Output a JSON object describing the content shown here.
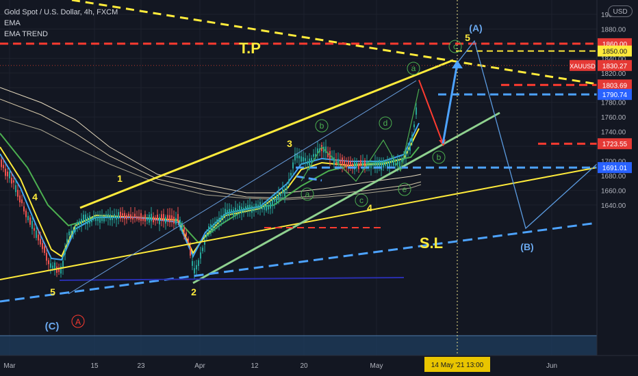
{
  "header": {
    "title": "Gold Spot / U.S. Dollar, 4h, FXCM",
    "indicator1": "EMA",
    "indicator2": "EMA TREND",
    "currency_button": "USD"
  },
  "colors": {
    "background": "#131722",
    "grid": "#1e222d",
    "axis_text": "#b2b5be",
    "candle_up": "#26a69a",
    "candle_down": "#ef5350",
    "yellow": "#ffeb3b",
    "red": "#ff3b30",
    "blue": "#4da3ff",
    "green": "#8fd18f",
    "navy": "#2a2fb0"
  },
  "chart_data": {
    "type": "candlestick",
    "title": "Gold Spot / U.S. Dollar, 4h, FXCM",
    "ylim": [
      1627,
      1902
    ],
    "y_ticks": [
      1640,
      1660,
      1680,
      1700,
      1720,
      1740,
      1760,
      1780,
      1800,
      1820,
      1840,
      1860,
      1880,
      1900
    ],
    "y_tick_labels": [
      "1640.00",
      "1660.00",
      "1680.00",
      "1700.00",
      "1720.00",
      "1740.00",
      "1760.00",
      "1780.00",
      "1800.00",
      "1820.00",
      "1840.00",
      "1860.00",
      "1880.00",
      "1900.00"
    ],
    "x_ticks": [
      "Mar",
      "15",
      "23",
      "Apr",
      "12",
      "20",
      "May",
      "Jun"
    ],
    "crosshair_date_label": "14 May '21   13:00",
    "price_label": "XAUUSD",
    "current_price": 1830.27,
    "current_price_label": "1830.27",
    "levels": [
      {
        "value": 1860.0,
        "label": "1860.00",
        "color": "#ff3b30",
        "style": "dashed"
      },
      {
        "value": 1850.0,
        "label": "1850.00",
        "color": "#ffeb3b",
        "style": "dashed"
      },
      {
        "value": 1803.69,
        "label": "1803.69",
        "color": "#ff3b30",
        "style": "dashed"
      },
      {
        "value": 1790.74,
        "label": "1790.74",
        "color": "#4da3ff",
        "style": "dashed"
      },
      {
        "value": 1723.55,
        "label": "1723.55",
        "color": "#ff3b30",
        "style": "dashed"
      },
      {
        "value": 1691.01,
        "label": "1691.01",
        "color": "#4da3ff",
        "style": "dashed"
      }
    ],
    "annotations": {
      "tp": "T.P",
      "sl": "S.L",
      "wave_A_big": "(A)",
      "wave_B_big": "(B)",
      "wave_C_big": "(C)",
      "wave_A_circle_red": "A",
      "impulse": [
        "1",
        "2",
        "3",
        "4",
        "5"
      ],
      "impulse_start": "5",
      "top_5": "5",
      "sub_top": [
        "a",
        "b",
        "c"
      ],
      "sub_mid": [
        "a",
        "b",
        "c",
        "d",
        "e"
      ],
      "b_proj": "b"
    }
  }
}
